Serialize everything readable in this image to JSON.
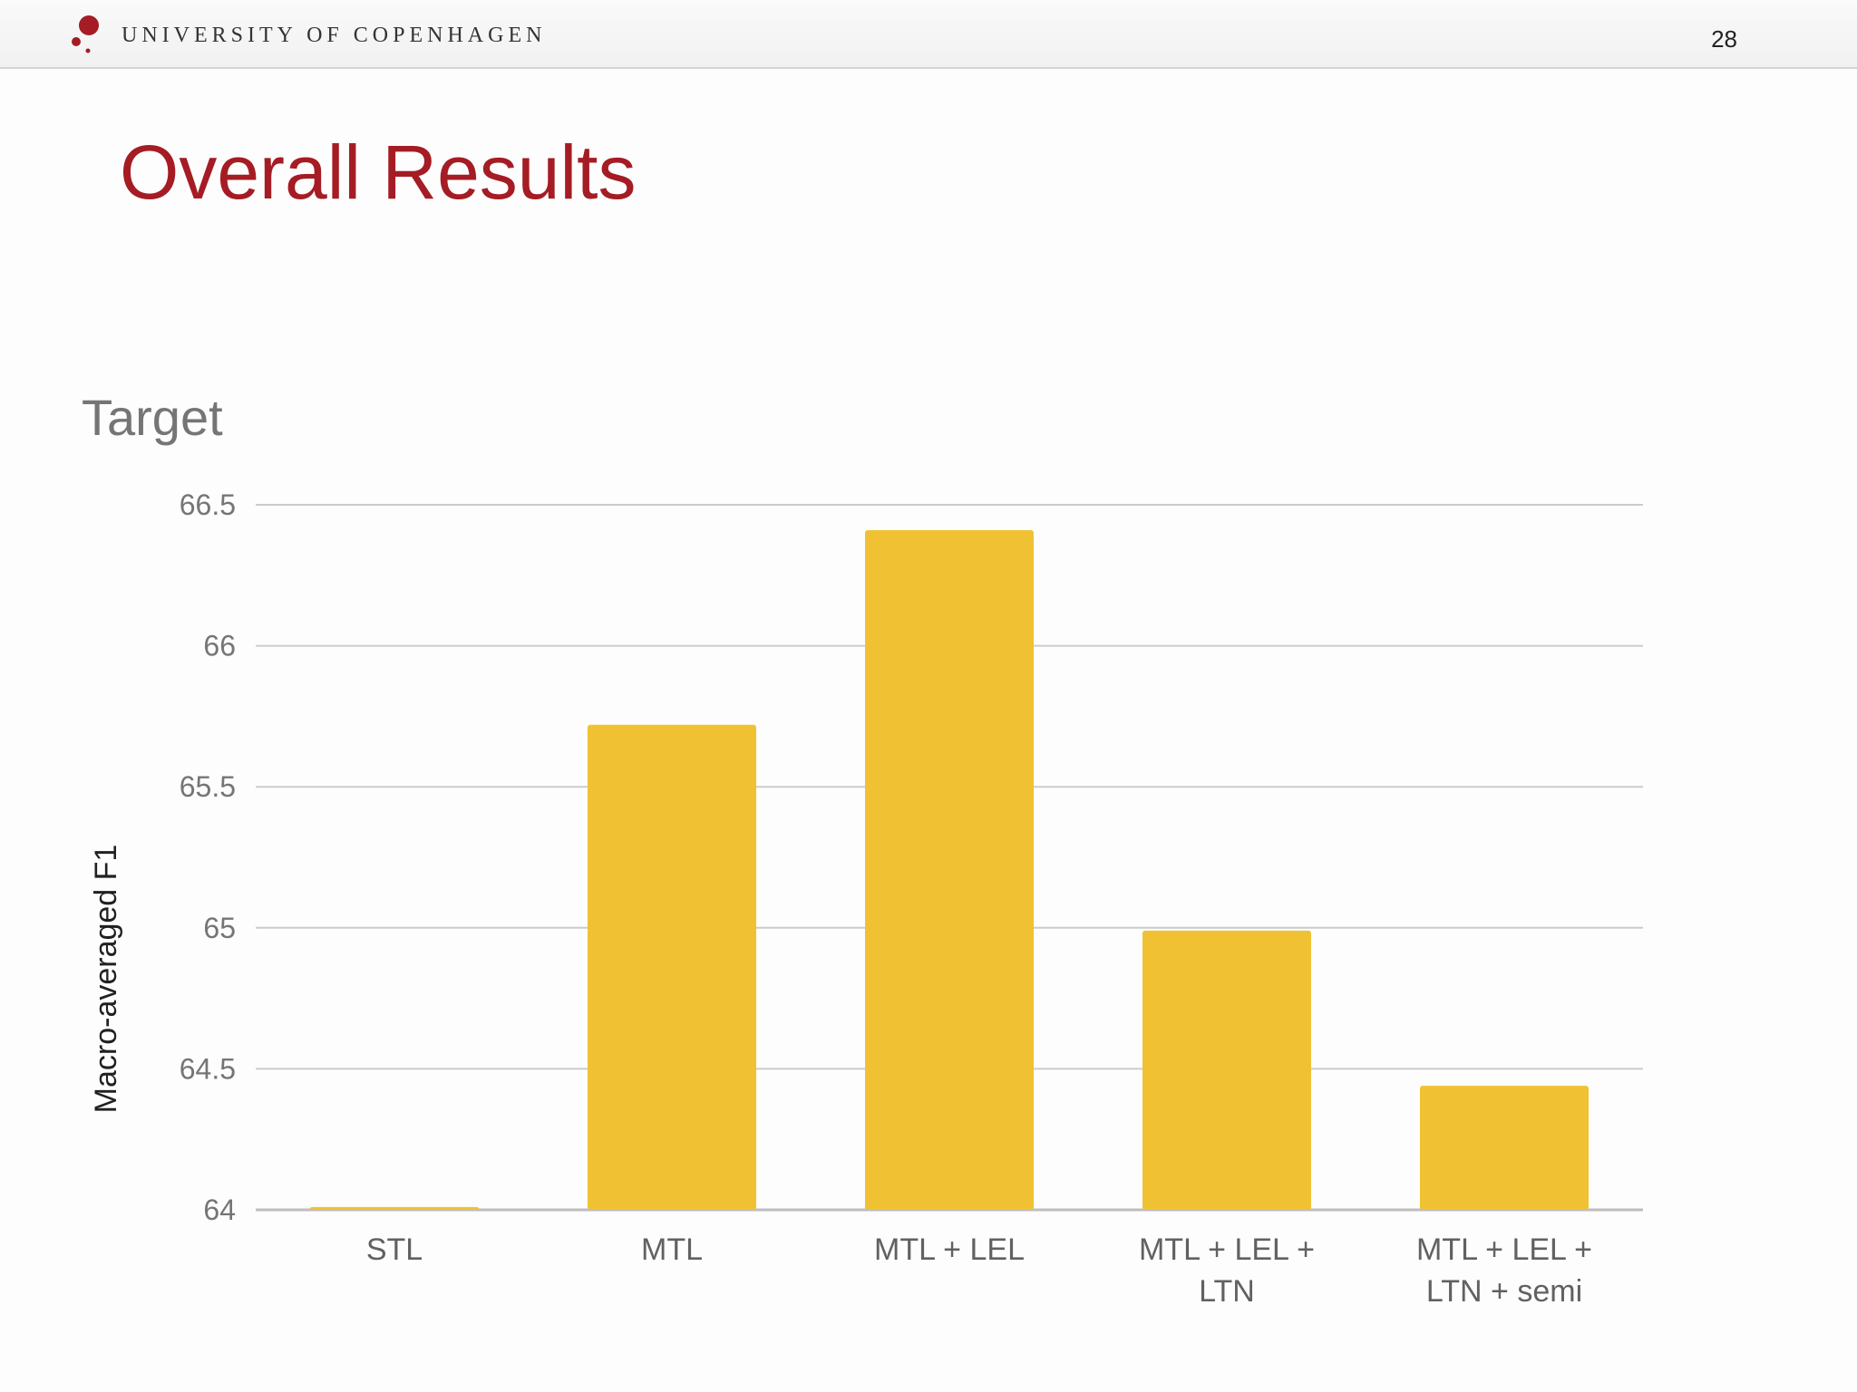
{
  "header": {
    "institution": "UNIVERSITY OF COPENHAGEN",
    "page_number": "28"
  },
  "slide": {
    "title": "Overall Results"
  },
  "colors": {
    "accent": "#a51c24",
    "bar": "#f0c233",
    "grid": "#cccccc",
    "axis_text": "#757575"
  },
  "chart_data": {
    "type": "bar",
    "title": "Target",
    "xlabel": "",
    "ylabel": "Macro-averaged F1",
    "categories": [
      "STL",
      "MTL",
      "MTL + LEL",
      "MTL + LEL + LTN",
      "MTL + LEL + LTN + semi"
    ],
    "category_lines": [
      [
        "STL"
      ],
      [
        "MTL"
      ],
      [
        "MTL + LEL"
      ],
      [
        "MTL + LEL +",
        "LTN"
      ],
      [
        "MTL + LEL +",
        "LTN + semi"
      ]
    ],
    "values": [
      64.01,
      65.72,
      66.41,
      64.99,
      64.44
    ],
    "ylim": [
      64,
      66.5
    ],
    "yticks": [
      "64",
      "64.5",
      "65",
      "65.5",
      "66",
      "66.5"
    ],
    "grid": true,
    "legend": "none"
  }
}
